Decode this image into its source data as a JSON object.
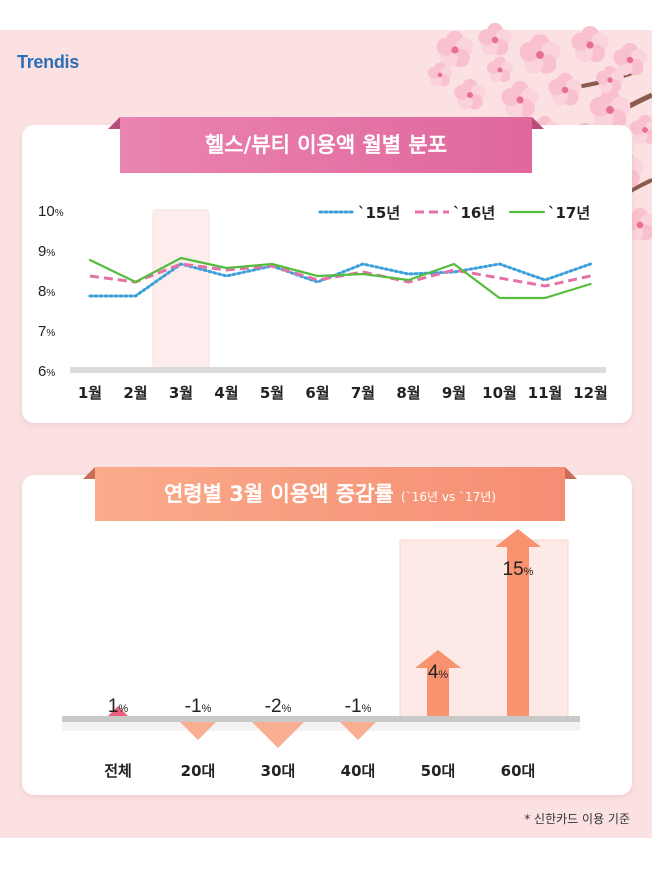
{
  "brand": {
    "logo": "Trendis"
  },
  "footnote": "* 신한카드 이용 기준",
  "colors": {
    "background": "#fbe1e2",
    "series15": "#3ba0d9",
    "series16": "#e372a6",
    "series17": "#55bd3e",
    "arrow": "#f8926f",
    "arrow_down": "#f9ae92",
    "highlight": "#fde9e6"
  },
  "chart_data": [
    {
      "type": "line",
      "title": "헬스/뷰티 이용액 월별 분포",
      "categories": [
        "1월",
        "2월",
        "3월",
        "4월",
        "5월",
        "6월",
        "7월",
        "8월",
        "9월",
        "10월",
        "11월",
        "12월"
      ],
      "y_ticks": [
        "6%",
        "7%",
        "8%",
        "9%",
        "10%"
      ],
      "ylim": [
        6,
        10
      ],
      "highlight_category": "3월",
      "series": [
        {
          "name": "`15년",
          "style": "dotted",
          "values": [
            7.85,
            7.85,
            8.65,
            8.35,
            8.6,
            8.2,
            8.65,
            8.4,
            8.45,
            8.65,
            8.25,
            8.65
          ]
        },
        {
          "name": "`16년",
          "style": "dashed",
          "values": [
            8.35,
            8.2,
            8.65,
            8.5,
            8.6,
            8.25,
            8.45,
            8.2,
            8.5,
            8.3,
            8.1,
            8.35
          ]
        },
        {
          "name": "`17년",
          "style": "solid",
          "values": [
            8.75,
            8.2,
            8.8,
            8.55,
            8.65,
            8.35,
            8.4,
            8.25,
            8.65,
            7.8,
            7.8,
            8.15
          ]
        }
      ]
    },
    {
      "type": "bar",
      "title": "연령별 3월 이용액 증감률",
      "subtitle": "(`16년 vs `17년)",
      "categories": [
        "전체",
        "20대",
        "30대",
        "40대",
        "50대",
        "60대"
      ],
      "values": [
        1,
        -1,
        -2,
        -1,
        4,
        15
      ],
      "labels": [
        "1",
        "-1",
        "-2",
        "-1",
        "4",
        "15"
      ],
      "unit": "%",
      "highlight_categories": [
        "50대",
        "60대"
      ]
    }
  ]
}
